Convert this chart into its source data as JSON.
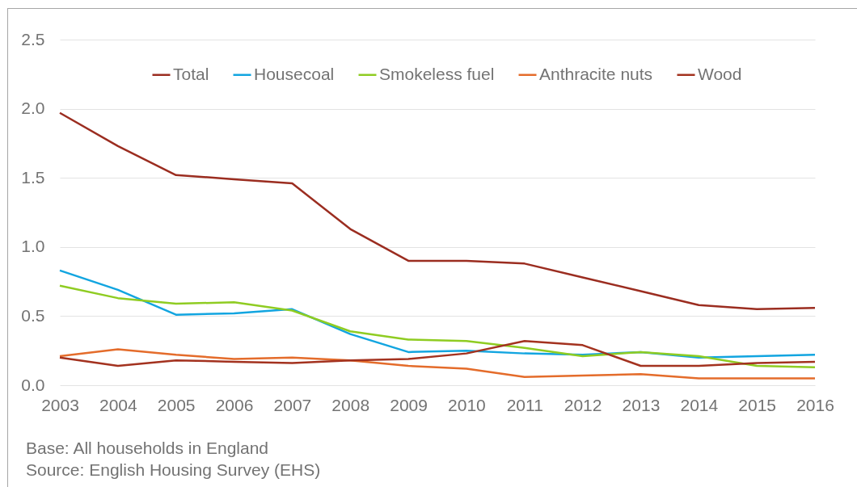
{
  "chart_data": {
    "type": "line",
    "categories": [
      "2003",
      "2004",
      "2005",
      "2006",
      "2007",
      "2008",
      "2009",
      "2010",
      "2011",
      "2012",
      "2013",
      "2014",
      "2015",
      "2016"
    ],
    "series": [
      {
        "name": "Total",
        "color": "#9b2d20",
        "values": [
          1.97,
          1.73,
          1.52,
          1.49,
          1.46,
          1.13,
          0.9,
          0.9,
          0.88,
          0.78,
          0.68,
          0.58,
          0.55,
          0.56
        ]
      },
      {
        "name": "Housecoal",
        "color": "#12a5e0",
        "values": [
          0.83,
          0.69,
          0.51,
          0.52,
          0.55,
          0.37,
          0.24,
          0.25,
          0.23,
          0.22,
          0.24,
          0.2,
          0.21,
          0.22
        ]
      },
      {
        "name": "Smokeless fuel",
        "color": "#8fcc22",
        "values": [
          0.72,
          0.63,
          0.59,
          0.6,
          0.54,
          0.39,
          0.33,
          0.32,
          0.27,
          0.21,
          0.24,
          0.21,
          0.14,
          0.13
        ]
      },
      {
        "name": "Anthracite nuts",
        "color": "#e46c2b",
        "values": [
          0.21,
          0.26,
          0.22,
          0.19,
          0.2,
          0.18,
          0.14,
          0.12,
          0.06,
          0.07,
          0.08,
          0.05,
          0.05,
          0.05
        ]
      },
      {
        "name": "Wood",
        "color": "#a3321f",
        "values": [
          0.2,
          0.14,
          0.18,
          0.17,
          0.16,
          0.18,
          0.19,
          0.23,
          0.32,
          0.29,
          0.14,
          0.14,
          0.16,
          0.17
        ]
      }
    ],
    "ylim": [
      0,
      2.5
    ],
    "yticks": [
      {
        "value": 0,
        "label": "0.0"
      },
      0.5,
      {
        "value": 1,
        "label": "1.0"
      },
      1.5,
      {
        "value": 2,
        "label": "2.0"
      },
      2.5
    ],
    "grid": "y",
    "legend": "top",
    "annotations": [
      "Base: All households in England",
      "Source: English Housing Survey (EHS)"
    ]
  }
}
